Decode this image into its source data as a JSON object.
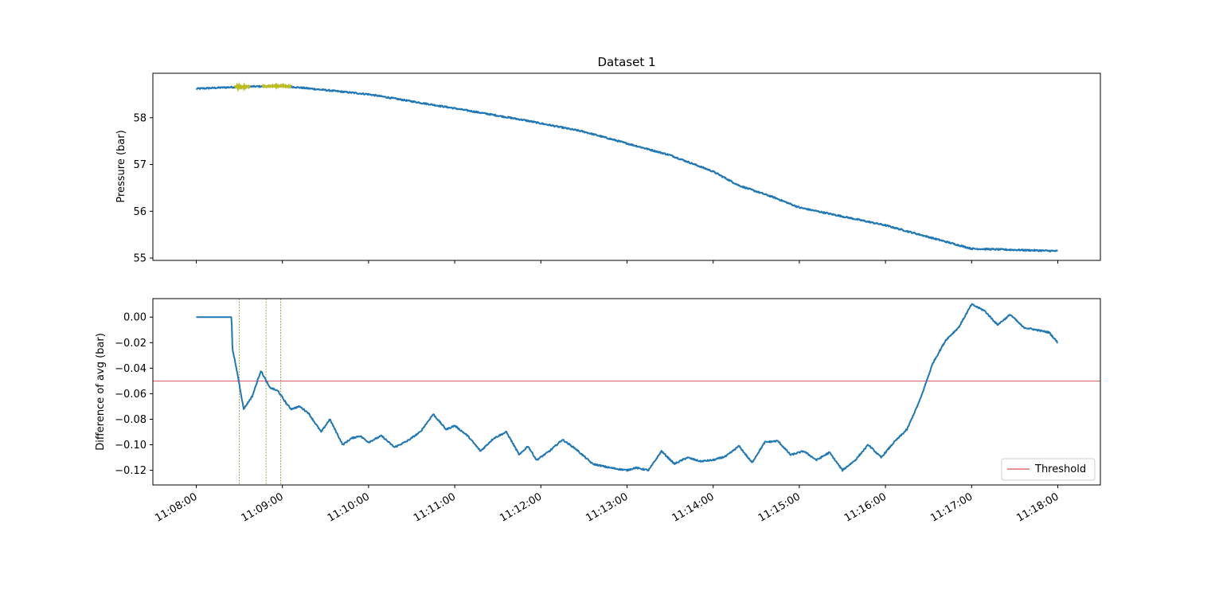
{
  "chart_data": [
    {
      "type": "line",
      "title": "Dataset 1",
      "xlabel": "",
      "ylabel": "Pressure (bar)",
      "x_range": [
        "11:08:00",
        "11:18:00"
      ],
      "ylim": [
        54.95,
        58.95
      ],
      "yticks": [
        55,
        56,
        57,
        58
      ],
      "ytick_labels": [
        "55",
        "56",
        "57",
        "58"
      ],
      "grid": false,
      "series": [
        {
          "color": "#1f77b4",
          "x_min": [
            0,
            0.5,
            1,
            2,
            3,
            3.8,
            4.5,
            5,
            5.5,
            6,
            6.3,
            6.7,
            7,
            8,
            9,
            10
          ],
          "y": [
            58.62,
            58.66,
            58.68,
            58.5,
            58.2,
            57.95,
            57.7,
            57.45,
            57.2,
            56.85,
            56.55,
            56.3,
            56.08,
            55.7,
            55.2,
            55.15
          ],
          "noise": 0.03
        }
      ],
      "highlight_segments": [
        {
          "color": "#bcbd22",
          "x_min": [
            0.45,
            0.62
          ]
        },
        {
          "color": "#bcbd22",
          "x_min": [
            0.77,
            1.1
          ]
        }
      ]
    },
    {
      "type": "line",
      "title": "",
      "xlabel": "",
      "ylabel": "Difference of avg (bar)",
      "x_range": [
        "11:08:00",
        "11:18:00"
      ],
      "xticks": [
        "11:08:00",
        "11:09:00",
        "11:10:00",
        "11:11:00",
        "11:12:00",
        "11:13:00",
        "11:14:00",
        "11:15:00",
        "11:16:00",
        "11:17:00",
        "11:18:00"
      ],
      "ylim": [
        -0.1315,
        0.0145
      ],
      "yticks": [
        0.0,
        -0.02,
        -0.04,
        -0.06,
        -0.08,
        -0.1,
        -0.12
      ],
      "ytick_labels": [
        "0.00",
        "−0.02",
        "−0.04",
        "−0.06",
        "−0.08",
        "−0.10",
        "−0.12"
      ],
      "grid": false,
      "legend": {
        "entries": [
          "Threshold"
        ],
        "placement": "lower-right"
      },
      "threshold": {
        "name": "Threshold",
        "value": -0.05,
        "color": "#d62728"
      },
      "vlines_min": [
        0.5,
        0.81,
        0.98
      ],
      "vline_color": "#7f9a1f",
      "series": [
        {
          "color": "#1f77b4",
          "x_min": [
            0,
            0.41,
            0.42,
            0.48,
            0.55,
            0.65,
            0.75,
            0.85,
            0.95,
            1.05,
            1.1,
            1.2,
            1.3,
            1.45,
            1.55,
            1.7,
            1.8,
            1.9,
            2.0,
            2.15,
            2.3,
            2.45,
            2.6,
            2.75,
            2.9,
            3.0,
            3.15,
            3.3,
            3.45,
            3.6,
            3.75,
            3.85,
            3.95,
            4.1,
            4.25,
            4.4,
            4.6,
            4.8,
            5.0,
            5.1,
            5.25,
            5.4,
            5.55,
            5.7,
            5.85,
            6.0,
            6.15,
            6.3,
            6.45,
            6.6,
            6.75,
            6.9,
            7.05,
            7.2,
            7.35,
            7.5,
            7.65,
            7.8,
            7.95,
            8.1,
            8.25,
            8.4,
            8.55,
            8.7,
            8.85,
            9.0,
            9.15,
            9.3,
            9.45,
            9.6,
            9.75,
            9.9,
            10.0
          ],
          "y": [
            0.0,
            0.0,
            -0.025,
            -0.045,
            -0.072,
            -0.062,
            -0.042,
            -0.055,
            -0.058,
            -0.068,
            -0.072,
            -0.07,
            -0.075,
            -0.09,
            -0.08,
            -0.1,
            -0.095,
            -0.093,
            -0.098,
            -0.093,
            -0.102,
            -0.097,
            -0.09,
            -0.076,
            -0.088,
            -0.085,
            -0.093,
            -0.105,
            -0.095,
            -0.09,
            -0.108,
            -0.101,
            -0.112,
            -0.105,
            -0.096,
            -0.103,
            -0.115,
            -0.118,
            -0.12,
            -0.118,
            -0.12,
            -0.105,
            -0.115,
            -0.11,
            -0.113,
            -0.112,
            -0.109,
            -0.101,
            -0.114,
            -0.098,
            -0.097,
            -0.108,
            -0.105,
            -0.112,
            -0.106,
            -0.12,
            -0.112,
            -0.1,
            -0.11,
            -0.098,
            -0.088,
            -0.065,
            -0.036,
            -0.018,
            -0.008,
            0.01,
            0.005,
            -0.006,
            0.002,
            -0.008,
            -0.01,
            -0.012,
            -0.02
          ],
          "noise": 0.0012
        }
      ]
    }
  ]
}
